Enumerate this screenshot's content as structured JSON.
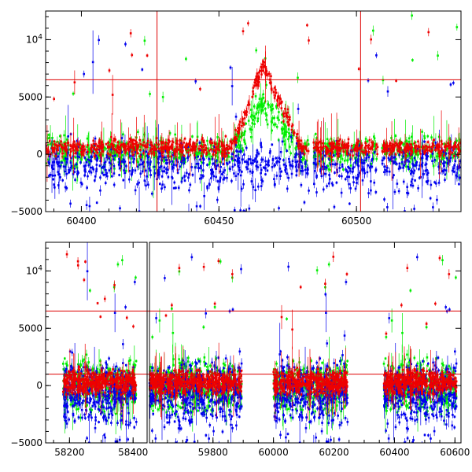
{
  "colors": {
    "green": "#00ee00",
    "blue": "#0000ee",
    "red": "#ee0000",
    "ref_line": "#dd0000",
    "axis": "#000000"
  },
  "chart_data": [
    {
      "type": "scatter",
      "panel": "top",
      "ylim": [
        -5000,
        12500
      ],
      "xlim": [
        60387,
        60538
      ],
      "x_ticks": [
        {
          "value": 60400,
          "label": "60400"
        },
        {
          "value": 60450,
          "label": "60450"
        },
        {
          "value": 60500,
          "label": "60500"
        }
      ],
      "y_ticks": [
        {
          "value": -5000,
          "label": "−5000"
        },
        {
          "value": 0,
          "label": "0"
        },
        {
          "value": 5000,
          "label": "5000"
        },
        {
          "value": 10000,
          "label": "10⁴",
          "base": "10",
          "exp": "4"
        }
      ],
      "hlines": [
        6500
      ],
      "vlines": [
        60427.5,
        60501.5
      ],
      "gaps": [
        60483.5,
        60508.5
      ],
      "flare": {
        "start": 60455,
        "peak": 60466,
        "end": 60480,
        "peak_value": 7200
      },
      "series": [
        {
          "color": "green",
          "baseline": 200,
          "spread": 900
        },
        {
          "color": "blue",
          "baseline": -900,
          "spread": 1300
        },
        {
          "color": "red",
          "baseline": 600,
          "spread": 500
        }
      ]
    },
    {
      "type": "scatter",
      "panel": "bottom",
      "ylim": [
        -5000,
        12500
      ],
      "broken_axis": true,
      "segments": [
        {
          "xlim": [
            58125,
            58444
          ],
          "season_range": [
            58180,
            58410
          ],
          "x_ticks": [
            {
              "value": 58200,
              "label": "58200"
            },
            {
              "value": 58400,
              "label": "58400"
            }
          ]
        },
        {
          "xlim": [
            59590,
            60620
          ],
          "season_ranges": [
            [
              59590,
              59895
            ],
            [
              60000,
              60245
            ],
            [
              60365,
              60605
            ]
          ],
          "x_ticks": [
            {
              "value": 59800,
              "label": "59800"
            },
            {
              "value": 60000,
              "label": "60000"
            },
            {
              "value": 60200,
              "label": "60200"
            },
            {
              "value": 60400,
              "label": "60400"
            },
            {
              "value": 60600,
              "label": "60600"
            }
          ]
        }
      ],
      "y_ticks": [
        {
          "value": -5000,
          "label": "−5000"
        },
        {
          "value": 0,
          "label": "0"
        },
        {
          "value": 5000,
          "label": "5000"
        },
        {
          "value": 10000,
          "label": "10⁴",
          "base": "10",
          "exp": "4"
        }
      ],
      "hlines": [
        6500,
        1000
      ],
      "series": [
        {
          "color": "green",
          "baseline": 0,
          "spread": 1500
        },
        {
          "color": "blue",
          "baseline": -500,
          "spread": 1700
        },
        {
          "color": "red",
          "baseline": 300,
          "spread": 700
        }
      ]
    }
  ]
}
